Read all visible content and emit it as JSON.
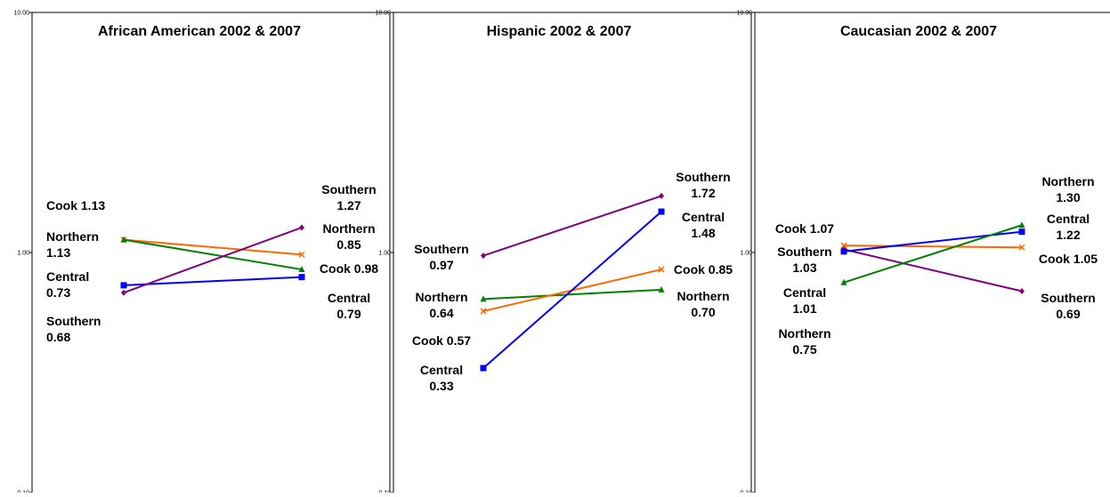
{
  "chart_data": [
    {
      "type": "line",
      "title": "African American 2002 & 2007",
      "x": [
        "2002",
        "2007"
      ],
      "ylim": [
        0.1,
        10
      ],
      "yscale": "log",
      "yticks": [
        "10.00",
        "1.00",
        "0.10"
      ],
      "series": [
        {
          "name": "Cook",
          "color": "#ff6600",
          "marker": "x",
          "values": [
            1.13,
            0.98
          ]
        },
        {
          "name": "Northern",
          "color": "#008000",
          "marker": "triangle",
          "values": [
            1.13,
            0.85
          ]
        },
        {
          "name": "Central",
          "color": "#0000ff",
          "marker": "square",
          "values": [
            0.73,
            0.79
          ]
        },
        {
          "name": "Southern",
          "color": "#800080",
          "marker": "diamond",
          "values": [
            0.68,
            1.27
          ]
        }
      ],
      "left_labels": [
        [
          "Cook 1.13"
        ],
        [
          "Northern",
          "1.13"
        ],
        [
          "Central",
          "0.73"
        ],
        [
          "Southern",
          "0.68"
        ]
      ],
      "right_labels": [
        [
          "Southern",
          "1.27"
        ],
        [
          "Northern",
          "0.85"
        ],
        [
          "Cook 0.98"
        ],
        [
          "Central",
          "0.79"
        ]
      ]
    },
    {
      "type": "line",
      "title": "Hispanic 2002 & 2007",
      "x": [
        "2002",
        "2007"
      ],
      "ylim": [
        0.1,
        10
      ],
      "yscale": "log",
      "yticks": [
        "10.00",
        "1.00",
        "0.10"
      ],
      "series": [
        {
          "name": "Southern",
          "color": "#800080",
          "marker": "diamond",
          "values": [
            0.97,
            1.72
          ]
        },
        {
          "name": "Northern",
          "color": "#008000",
          "marker": "triangle",
          "values": [
            0.64,
            0.7
          ]
        },
        {
          "name": "Cook",
          "color": "#ff6600",
          "marker": "x",
          "values": [
            0.57,
            0.85
          ]
        },
        {
          "name": "Central",
          "color": "#0000ff",
          "marker": "square",
          "values": [
            0.33,
            1.48
          ]
        }
      ],
      "left_labels": [
        [
          "Southern",
          "0.97"
        ],
        [
          "Northern",
          "0.64"
        ],
        [
          "Cook 0.57"
        ],
        [
          "Central",
          "0.33"
        ]
      ],
      "right_labels": [
        [
          "Southern",
          "1.72"
        ],
        [
          "Central",
          "1.48"
        ],
        [
          "Cook 0.85"
        ],
        [
          "Northern",
          "0.70"
        ]
      ]
    },
    {
      "type": "line",
      "title": "Caucasian 2002 & 2007",
      "x": [
        "2002",
        "2007"
      ],
      "ylim": [
        0.1,
        10
      ],
      "yscale": "log",
      "yticks": [
        "10.00",
        "1.00",
        "0.10"
      ],
      "series": [
        {
          "name": "Cook",
          "color": "#ff6600",
          "marker": "x",
          "values": [
            1.07,
            1.05
          ]
        },
        {
          "name": "Southern",
          "color": "#800080",
          "marker": "diamond",
          "values": [
            1.03,
            0.69
          ]
        },
        {
          "name": "Central",
          "color": "#0000ff",
          "marker": "square",
          "values": [
            1.01,
            1.22
          ]
        },
        {
          "name": "Northern",
          "color": "#008000",
          "marker": "triangle",
          "values": [
            0.75,
            1.3
          ]
        }
      ],
      "left_labels": [
        [
          "Cook 1.07"
        ],
        [
          "Southern",
          "1.03"
        ],
        [
          "Central",
          "1.01"
        ],
        [
          "Northern",
          "0.75"
        ]
      ],
      "right_labels": [
        [
          "Northern",
          "1.30"
        ],
        [
          "Central",
          "1.22"
        ],
        [
          "Cook 1.05"
        ],
        [
          "Southern",
          "0.69"
        ]
      ]
    }
  ]
}
